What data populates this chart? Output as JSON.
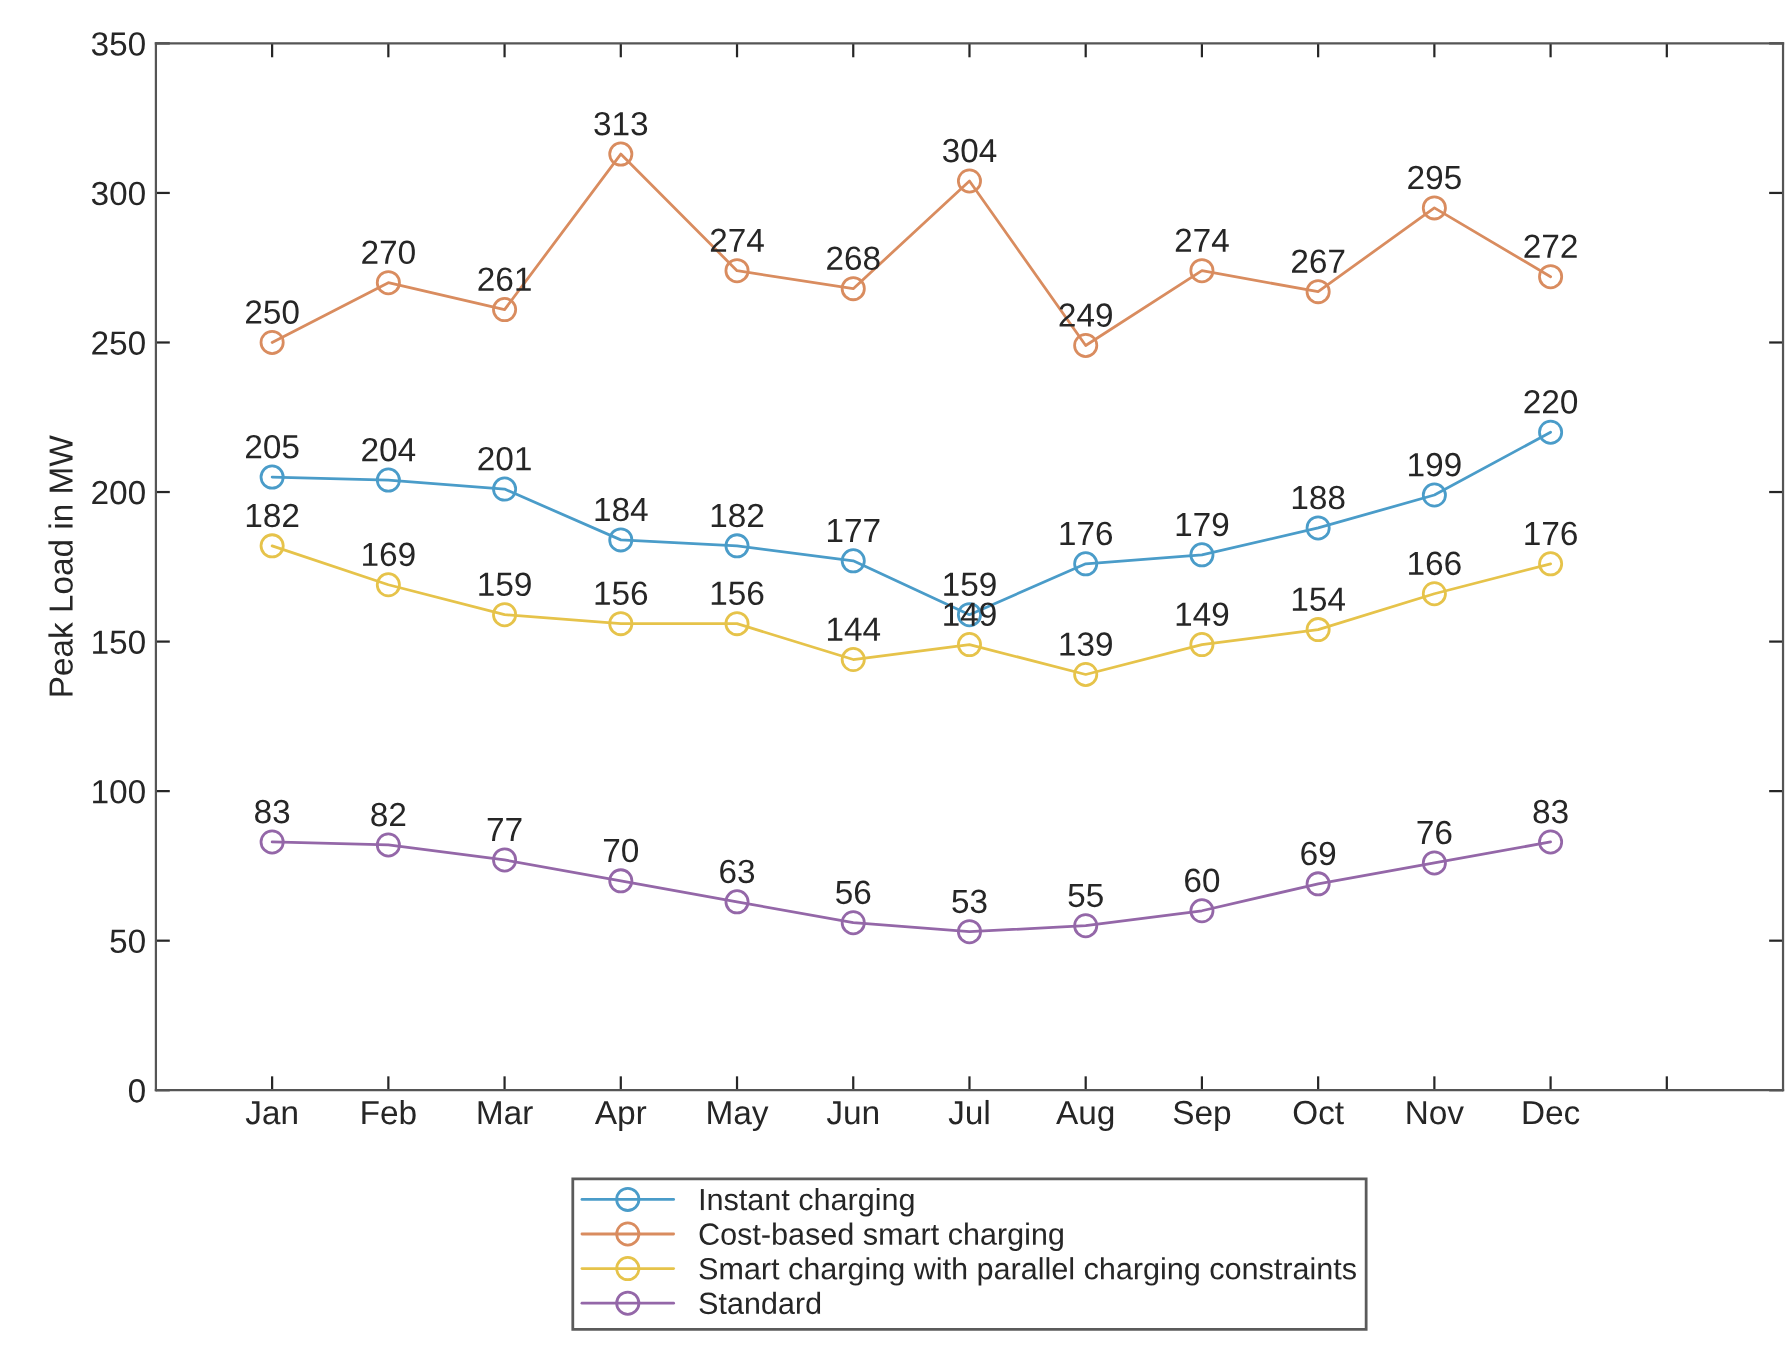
{
  "chart_data": {
    "type": "line",
    "ylabel": "Peak Load in MW",
    "categories": [
      "Jan",
      "Feb",
      "Mar",
      "Apr",
      "May",
      "Jun",
      "Jul",
      "Aug",
      "Sep",
      "Oct",
      "Nov",
      "Dec",
      null
    ],
    "series": [
      {
        "name": "Instant charging",
        "color": "#4a9cc9",
        "values": [
          205,
          204,
          201,
          184,
          182,
          177,
          159,
          176,
          179,
          188,
          199,
          220,
          null
        ]
      },
      {
        "name": "Cost-based smart charging",
        "color": "#d98c5f",
        "values": [
          250,
          270,
          261,
          313,
          274,
          268,
          304,
          249,
          274,
          267,
          295,
          272,
          null
        ]
      },
      {
        "name": "Smart charging with parallel charging constraints",
        "color": "#e6c34a",
        "values": [
          182,
          169,
          159,
          156,
          156,
          144,
          149,
          139,
          149,
          154,
          166,
          176,
          null
        ]
      },
      {
        "name": "Standard",
        "color": "#9467a8",
        "values": [
          83,
          82,
          77,
          70,
          63,
          56,
          53,
          55,
          60,
          69,
          76,
          83,
          null
        ]
      }
    ],
    "ylim": [
      0,
      350
    ],
    "yticks": [
      0,
      50,
      100,
      150,
      200,
      250,
      300,
      350
    ],
    "grid": false,
    "legend": "bottom",
    "marker": "circle",
    "line_style": "solid",
    "data_labels": true
  }
}
